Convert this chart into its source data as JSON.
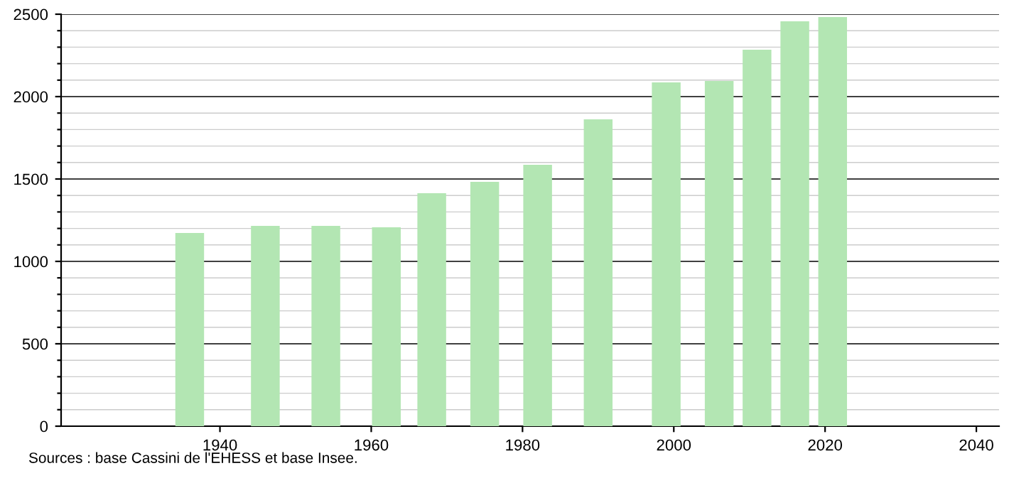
{
  "chart_data": {
    "type": "bar",
    "x": [
      1936,
      1946,
      1954,
      1962,
      1968,
      1975,
      1982,
      1990,
      1999,
      2006,
      2011,
      2016,
      2021
    ],
    "values": [
      1172,
      1216,
      1216,
      1207,
      1414,
      1483,
      1586,
      1862,
      2086,
      2095,
      2284,
      2457,
      2483
    ],
    "color": "#b3e6b3",
    "xlim": [
      1919,
      2043
    ],
    "xticks": [
      1940,
      1960,
      1980,
      2000,
      2020,
      2040
    ],
    "ylim": [
      0,
      2500
    ],
    "yticks": [
      0,
      {
        "value": 100,
        "label": null
      },
      {
        "value": 200,
        "label": null
      },
      {
        "value": 300,
        "label": null
      },
      {
        "value": 400,
        "label": null
      },
      500,
      {
        "value": 600,
        "label": null
      },
      {
        "value": 700,
        "label": null
      },
      {
        "value": 800,
        "label": null
      },
      {
        "value": 900,
        "label": null
      },
      1000,
      {
        "value": 1100,
        "label": null
      },
      {
        "value": 1200,
        "label": null
      },
      {
        "value": 1300,
        "label": null
      },
      {
        "value": 1400,
        "label": null
      },
      1500,
      {
        "value": 1600,
        "label": null
      },
      {
        "value": 1700,
        "label": null
      },
      {
        "value": 1800,
        "label": null
      },
      {
        "value": 1900,
        "label": null
      },
      2000,
      {
        "value": 2100,
        "label": null
      },
      {
        "value": 2200,
        "label": null
      },
      {
        "value": 2300,
        "label": null
      },
      {
        "value": 2400,
        "label": null
      },
      2500
    ],
    "grid": "y",
    "annotations": [
      "Sources : base Cassini de l'EHESS et base Insee."
    ]
  }
}
